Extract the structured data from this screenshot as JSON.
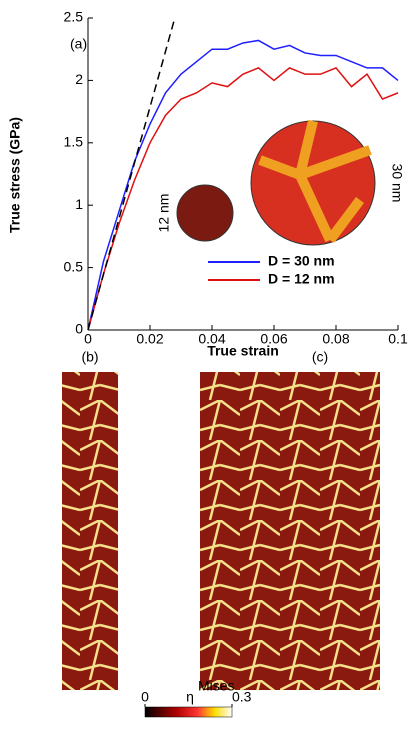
{
  "chart_data": {
    "type": "line",
    "panel": "(a)",
    "xlabel": "True strain",
    "ylabel": "True stress (GPa)",
    "x": [
      0,
      0.005,
      0.01,
      0.015,
      0.02,
      0.025,
      0.03,
      0.035,
      0.04,
      0.045,
      0.05,
      0.055,
      0.06,
      0.065,
      0.07,
      0.075,
      0.08,
      0.085,
      0.09,
      0.095,
      0.1
    ],
    "series": [
      {
        "name": "D = 30 nm",
        "color": "#1f1fff",
        "values": [
          0,
          0.55,
          0.95,
          1.35,
          1.65,
          1.9,
          2.05,
          2.15,
          2.25,
          2.25,
          2.3,
          2.32,
          2.25,
          2.28,
          2.22,
          2.2,
          2.2,
          2.15,
          2.1,
          2.1,
          2.0
        ]
      },
      {
        "name": "D = 12 nm",
        "color": "#e01010",
        "values": [
          0,
          0.45,
          0.85,
          1.2,
          1.5,
          1.72,
          1.85,
          1.9,
          1.98,
          1.95,
          2.05,
          2.1,
          2.0,
          2.1,
          2.05,
          2.05,
          2.1,
          1.95,
          2.05,
          1.85,
          1.9
        ]
      },
      {
        "color": "#000000",
        "dashed": true,
        "x": [
          0,
          0.028
        ],
        "values": [
          0,
          2.5
        ]
      }
    ],
    "xlim": [
      0,
      0.1
    ],
    "ylim": [
      0,
      2.5
    ],
    "xticks": [
      0,
      0.02,
      0.04,
      0.06,
      0.08,
      0.1
    ],
    "yticks": [
      0,
      0.5,
      1,
      1.5,
      2,
      2.5
    ],
    "insets": [
      "12 nm",
      "30 nm"
    ]
  },
  "panels": [
    "(b)",
    "(c)"
  ],
  "colorbar": {
    "label": "η",
    "label_sup": "Mises",
    "ticks": [
      0,
      0.3
    ]
  }
}
